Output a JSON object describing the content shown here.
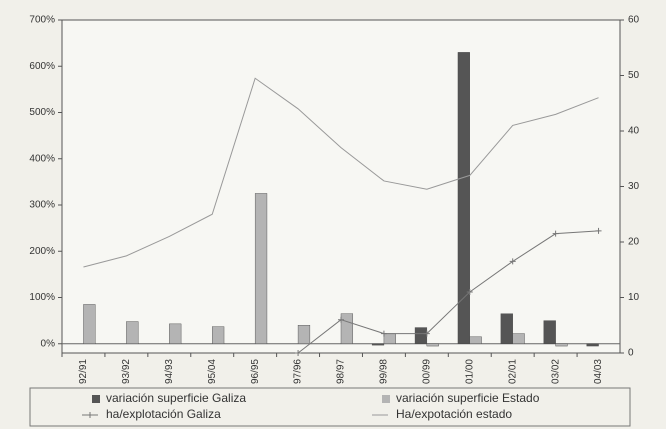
{
  "chart_data": {
    "type": "bar",
    "categories": [
      "92/91",
      "93/92",
      "94/93",
      "95/04",
      "96/95",
      "97/96",
      "98/97",
      "99/98",
      "00/99",
      "01/00",
      "02/01",
      "03/02",
      "04/03"
    ],
    "series": [
      {
        "name": "variación superficie Galiza",
        "type": "bar",
        "color": "#555555",
        "values": [
          0,
          0,
          0,
          0,
          0,
          0,
          0,
          -3,
          35,
          630,
          65,
          50,
          -5
        ]
      },
      {
        "name": "variación superficie Estado",
        "type": "bar",
        "color": "#b4b4b4",
        "values": [
          85,
          48,
          43,
          37,
          325,
          40,
          65,
          22,
          -5,
          15,
          22,
          -5,
          0
        ]
      },
      {
        "name": "ha/explotación Galiza",
        "type": "line",
        "axis": "y2",
        "marker": "plus",
        "color": "#777777",
        "values": [
          null,
          null,
          null,
          null,
          null,
          0,
          6,
          3.5,
          3.5,
          11,
          16.5,
          21.5,
          22
        ]
      },
      {
        "name": "Ha/expotación estado",
        "type": "line",
        "axis": "y2",
        "marker": "none",
        "color": "#999999",
        "values": [
          15.5,
          17.5,
          21,
          25,
          49.5,
          44,
          37,
          31,
          29.5,
          32,
          41,
          43,
          46
        ]
      }
    ],
    "ylim": [
      -20,
      700
    ],
    "yticks": [
      {
        "value": 0,
        "label": "0%"
      },
      {
        "value": 100,
        "label": "100%"
      },
      {
        "value": 200,
        "label": "200%"
      },
      {
        "value": 300,
        "label": "300%"
      },
      {
        "value": 400,
        "label": "400%"
      },
      {
        "value": 500,
        "label": "500%"
      },
      {
        "value": 600,
        "label": "600%"
      },
      {
        "value": 700,
        "label": "700%"
      }
    ],
    "y2lim": [
      0,
      60
    ],
    "y2ticks": [
      0,
      10,
      20,
      30,
      40,
      50,
      60
    ],
    "legend": "bottom"
  }
}
